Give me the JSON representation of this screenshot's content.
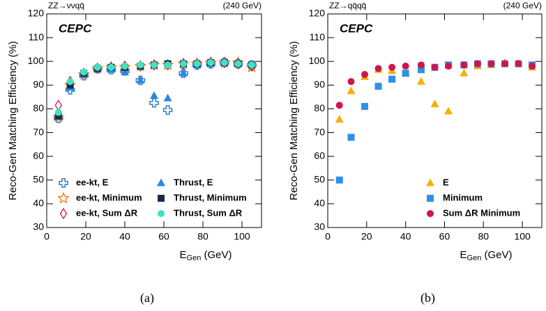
{
  "chart_data": [
    {
      "type": "scatter",
      "title": "ZZ→ννqq̄",
      "energy": "(240 GeV)",
      "experiment": "CEPC",
      "ylabel": "Reco-Gen Matching Efficiency (%)",
      "xlabel": "E",
      "xlabel_sub": "Gen",
      "xlabel_unit": " (GeV)",
      "caption": "(a)",
      "xlim": [
        0,
        110
      ],
      "ylim": [
        30,
        120
      ],
      "xticks": [
        0,
        20,
        40,
        60,
        80,
        100
      ],
      "yticks": [
        30,
        40,
        50,
        60,
        70,
        80,
        90,
        100,
        110,
        120
      ],
      "legend": "lower left",
      "legend_columns": 2,
      "x": [
        6,
        12,
        19,
        26,
        33,
        40,
        48,
        55,
        62,
        70,
        77,
        84,
        91,
        98,
        105
      ],
      "series": [
        {
          "name": "ee-kt, E",
          "color": "#2a7fc0",
          "marker": "cross-open",
          "values": [
            76,
            88,
            94,
            97,
            96.5,
            96,
            92,
            82.5,
            79.5,
            95,
            98.5,
            99,
            99.5,
            99,
            98.5
          ]
        },
        {
          "name": "ee-kt, Minimum",
          "color": "#f07a1a",
          "marker": "star-open",
          "values": [
            76.5,
            90,
            94.5,
            97,
            97.5,
            97.5,
            98,
            98.5,
            98.5,
            99,
            99,
            99.5,
            99.5,
            99.5,
            97.5
          ]
        },
        {
          "name": "ee-kt, Sum ΔR",
          "color": "#d0154d",
          "marker": "diamond-open",
          "values": [
            81.5,
            91.5,
            95,
            97,
            97.5,
            98,
            98,
            98.5,
            98.5,
            99,
            99,
            99.5,
            99.5,
            99,
            98
          ]
        },
        {
          "name": "Thrust, E",
          "color": "#2a86e8",
          "marker": "triangle",
          "values": [
            77,
            89,
            94.5,
            97,
            96.5,
            95.5,
            92,
            85.5,
            84.5,
            95,
            98.5,
            99,
            99.5,
            99,
            98.5
          ]
        },
        {
          "name": "Thrust, Minimum",
          "color": "#1c2a4a",
          "marker": "square",
          "values": [
            77,
            90,
            95,
            97,
            97.5,
            97.5,
            98,
            98.5,
            99,
            99,
            99,
            99.5,
            99.5,
            99,
            98.5
          ]
        },
        {
          "name": "Thrust, Sum  ΔR",
          "color": "#3de3c3",
          "marker": "circle",
          "values": [
            78.5,
            91.5,
            95.5,
            97.5,
            97.5,
            98,
            98.5,
            98.5,
            98.5,
            99,
            99,
            99.5,
            99.5,
            99,
            98.5
          ]
        }
      ]
    },
    {
      "type": "scatter",
      "title": "ZZ→qq̄qq̄",
      "energy": "(240 GeV)",
      "experiment": "CEPC",
      "ylabel": "Reco-Gen Matching Efficiency (%)",
      "xlabel": "E",
      "xlabel_sub": "Gen",
      "xlabel_unit": " (GeV)",
      "caption": "(b)",
      "xlim": [
        0,
        110
      ],
      "ylim": [
        30,
        120
      ],
      "xticks": [
        0,
        20,
        40,
        60,
        80,
        100
      ],
      "yticks": [
        30,
        40,
        50,
        60,
        70,
        80,
        90,
        100,
        110,
        120
      ],
      "legend": "lower right",
      "legend_columns": 1,
      "x": [
        6,
        12,
        19,
        26,
        33,
        40,
        48,
        55,
        62,
        70,
        77,
        84,
        91,
        98,
        105
      ],
      "series": [
        {
          "name": "E",
          "color": "#f5b000",
          "marker": "triangle",
          "values": [
            75.5,
            87.5,
            93.5,
            96.5,
            96,
            95,
            91.5,
            82,
            79,
            95,
            98,
            98.5,
            99.5,
            99,
            97.5
          ]
        },
        {
          "name": "Minimum",
          "color": "#3090e8",
          "marker": "square",
          "values": [
            50,
            68,
            81,
            89.5,
            92.5,
            95,
            96.5,
            97.5,
            98.5,
            98.5,
            99,
            99,
            99,
            99,
            98.5
          ]
        },
        {
          "name": "Sum  ΔR Minimum",
          "color": "#d0154d",
          "marker": "circle",
          "values": [
            81.5,
            91.5,
            94.5,
            97,
            97.5,
            98,
            98.5,
            97.5,
            98,
            98.5,
            99,
            99,
            99,
            99,
            98
          ]
        }
      ]
    }
  ]
}
